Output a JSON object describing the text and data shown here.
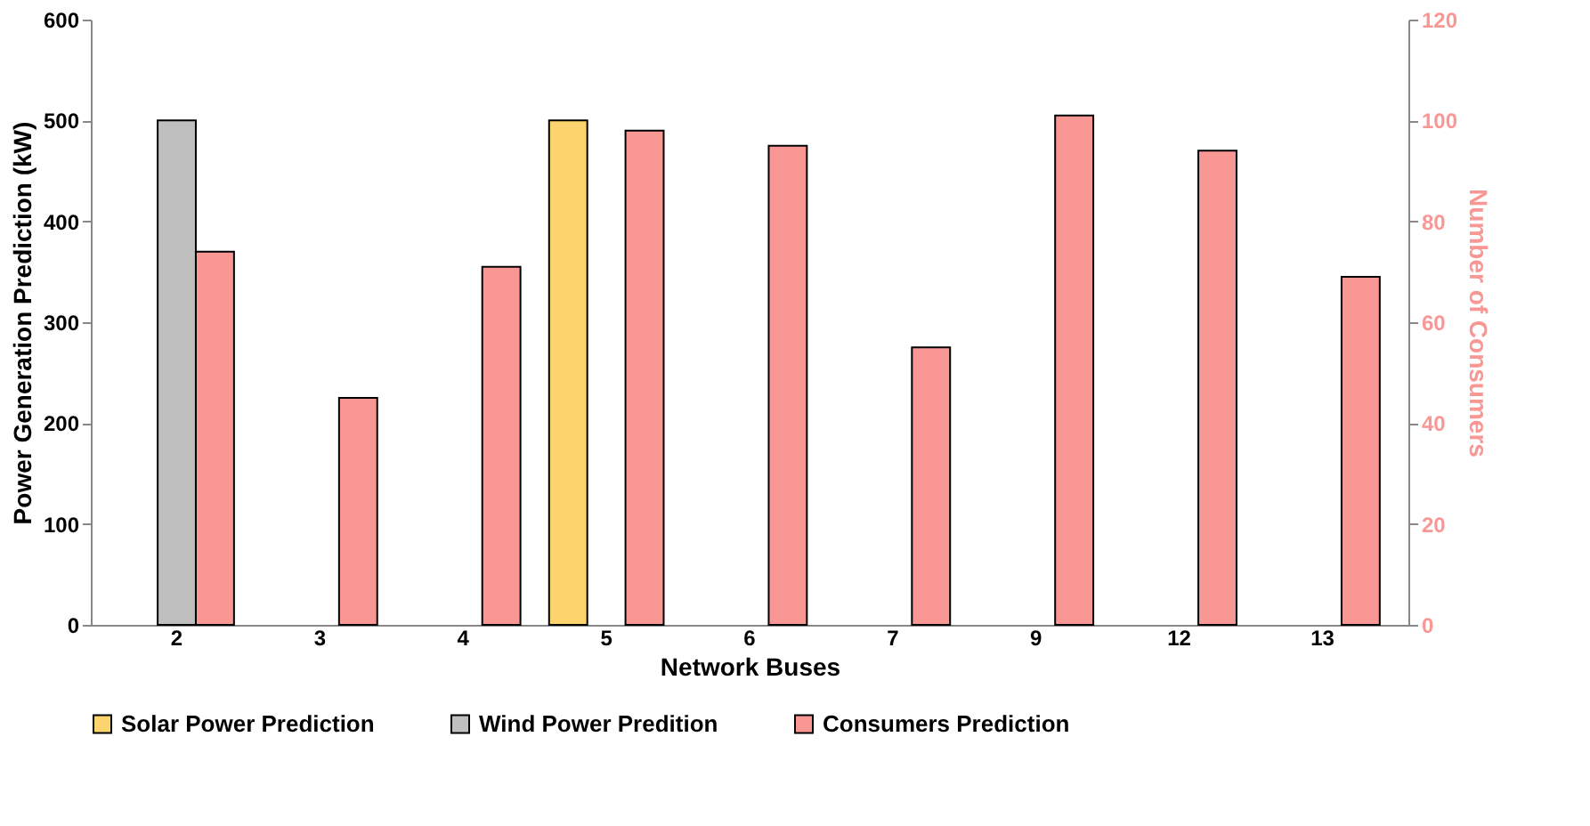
{
  "chart_data": {
    "type": "bar",
    "xlabel": "Network Buses",
    "ylabel": "Power Generation Prediction (kW)",
    "y2label": "Number of Consumers",
    "categories": [
      "2",
      "3",
      "4",
      "5",
      "6",
      "7",
      "9",
      "12",
      "13"
    ],
    "series": [
      {
        "name": "Solar Power Prediction",
        "color": "#fcd46e",
        "values": [
          null,
          null,
          null,
          500,
          null,
          null,
          null,
          null,
          null
        ]
      },
      {
        "name": "Wind Power Predition",
        "color": "#bfbfbf",
        "values": [
          500,
          null,
          null,
          null,
          null,
          null,
          null,
          null,
          null
        ]
      },
      {
        "name": "Consumers Prediction",
        "color": "#f99795",
        "axis": "y2",
        "values": [
          74,
          45,
          71,
          98,
          95,
          55,
          101,
          94,
          69
        ]
      }
    ],
    "ylim": [
      0,
      600
    ],
    "yticks": [
      0,
      100,
      200,
      300,
      400,
      500,
      600
    ],
    "y2lim": [
      0,
      120
    ],
    "y2ticks": [
      0,
      20,
      40,
      60,
      80,
      100,
      120
    ],
    "grid": false,
    "legend": "bottom"
  }
}
